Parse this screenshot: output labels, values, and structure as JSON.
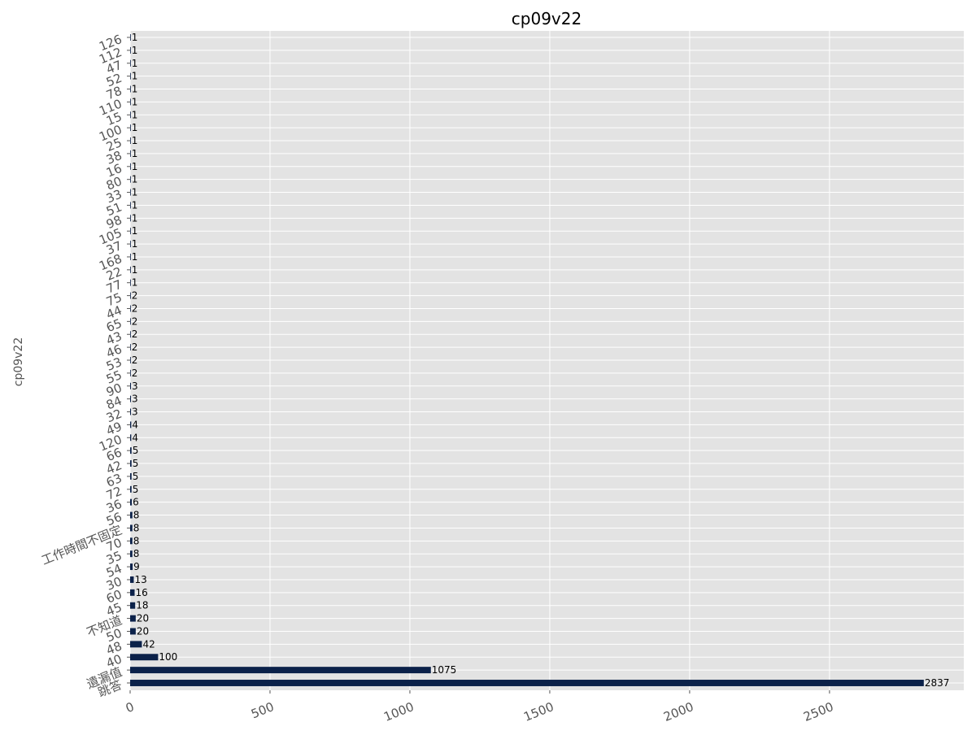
{
  "chart_data": {
    "type": "bar",
    "orientation": "horizontal",
    "title": "cp09v22",
    "xlabel": "",
    "ylabel": "cp09v22",
    "xlim": [
      0,
      2980
    ],
    "x_ticks": [
      0,
      500,
      1000,
      1500,
      2000,
      2500
    ],
    "grid": true,
    "legend": "none",
    "colors": {
      "bar": "#0b2149",
      "plot_background": "#e3e3e3",
      "grid": "#ffffff",
      "tick_text": "#555555",
      "title_text": "#000000"
    },
    "categories": [
      "跳答",
      "遺漏值",
      "40",
      "48",
      "50",
      "不知道",
      "45",
      "60",
      "30",
      "54",
      "35",
      "70",
      "工作時間不固定",
      "56",
      "36",
      "72",
      "63",
      "42",
      "66",
      "120",
      "49",
      "32",
      "84",
      "90",
      "55",
      "53",
      "46",
      "43",
      "65",
      "44",
      "75",
      "77",
      "22",
      "168",
      "37",
      "105",
      "98",
      "51",
      "33",
      "80",
      "16",
      "38",
      "25",
      "100",
      "15",
      "110",
      "78",
      "52",
      "47",
      "112",
      "126"
    ],
    "values": [
      2837,
      1075,
      100,
      42,
      20,
      20,
      18,
      16,
      13,
      9,
      8,
      8,
      8,
      8,
      6,
      5,
      5,
      5,
      5,
      4,
      4,
      3,
      3,
      3,
      2,
      2,
      2,
      2,
      2,
      2,
      2,
      1,
      1,
      1,
      1,
      1,
      1,
      1,
      1,
      1,
      1,
      1,
      1,
      1,
      1,
      1,
      1,
      1,
      1,
      1,
      1
    ]
  }
}
